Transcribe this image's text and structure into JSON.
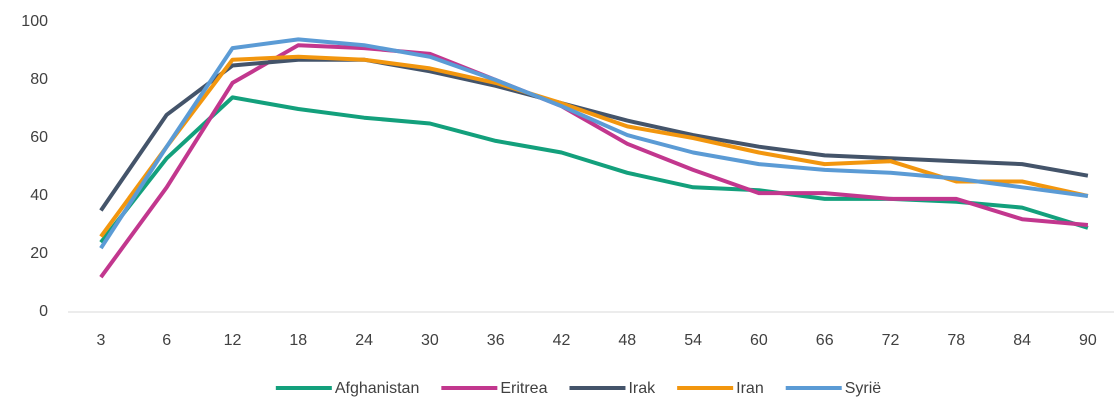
{
  "chart_data": {
    "type": "line",
    "categories": [
      "3",
      "6",
      "12",
      "18",
      "24",
      "30",
      "36",
      "42",
      "48",
      "54",
      "60",
      "66",
      "72",
      "78",
      "84",
      "90"
    ],
    "series": [
      {
        "name": "Afghanistan",
        "color": "#13a07c",
        "values": [
          24,
          53,
          74,
          70,
          67,
          65,
          59,
          55,
          48,
          43,
          42,
          39,
          39,
          38,
          36,
          29
        ]
      },
      {
        "name": "Eritrea",
        "color": "#c2378e",
        "values": [
          12,
          43,
          79,
          92,
          91,
          89,
          80,
          71,
          58,
          49,
          41,
          41,
          39,
          39,
          32,
          30
        ]
      },
      {
        "name": "Irak",
        "color": "#44546a",
        "values": [
          35,
          68,
          85,
          87,
          87,
          83,
          78,
          72,
          66,
          61,
          57,
          54,
          53,
          52,
          51,
          47
        ]
      },
      {
        "name": "Iran",
        "color": "#f2960e",
        "values": [
          26,
          57,
          87,
          88,
          87,
          84,
          79,
          72,
          64,
          60,
          55,
          51,
          52,
          45,
          45,
          40
        ]
      },
      {
        "name": "Syrië",
        "color": "#5b9bd5",
        "values": [
          22,
          57,
          91,
          94,
          92,
          88,
          80,
          71,
          61,
          55,
          51,
          49,
          48,
          46,
          43,
          40
        ]
      }
    ],
    "ylim": [
      0,
      100
    ],
    "yticks": [
      0,
      20,
      40,
      60,
      80,
      100
    ],
    "grid": false,
    "legend": "bottom"
  }
}
